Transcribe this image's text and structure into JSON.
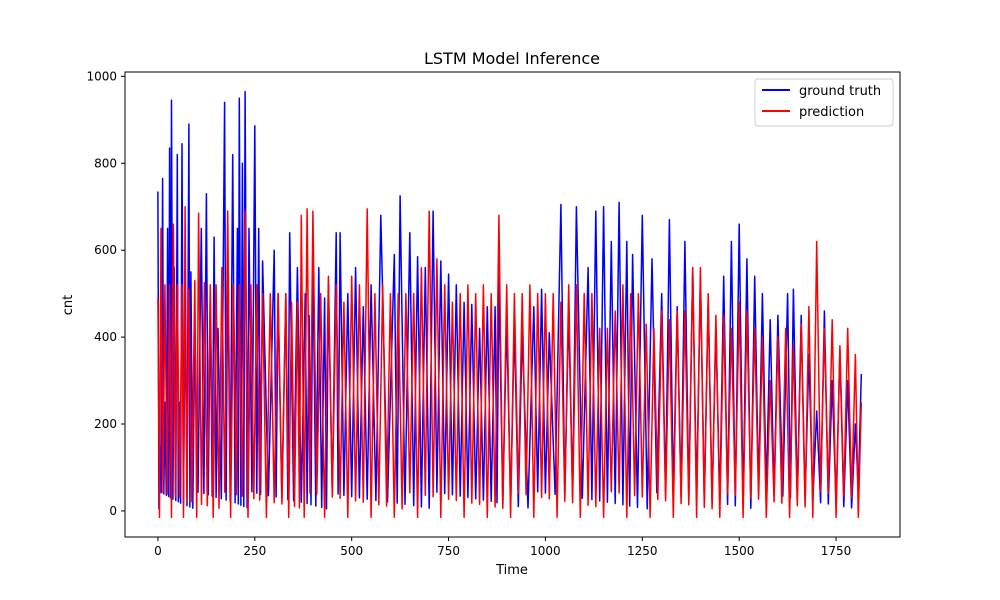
{
  "chart_data": {
    "type": "line",
    "title": "LSTM Model Inference",
    "xlabel": "Time",
    "ylabel": "cnt",
    "xlim": [
      -85,
      1915
    ],
    "ylim": [
      -60,
      1010
    ],
    "xticks": [
      0,
      250,
      500,
      750,
      1000,
      1250,
      1500,
      1750
    ],
    "yticks": [
      0,
      200,
      400,
      600,
      800,
      1000
    ],
    "grid": false,
    "legend_position": "top-right",
    "series": [
      {
        "name": "ground truth",
        "color": "#0000ff",
        "peaks": [
          [
            0,
            735
          ],
          [
            5,
            150
          ],
          [
            12,
            765
          ],
          [
            18,
            250
          ],
          [
            25,
            650
          ],
          [
            30,
            835
          ],
          [
            35,
            945
          ],
          [
            42,
            560
          ],
          [
            50,
            820
          ],
          [
            55,
            250
          ],
          [
            62,
            845
          ],
          [
            70,
            500
          ],
          [
            80,
            890
          ],
          [
            85,
            550
          ],
          [
            95,
            420
          ],
          [
            112,
            650
          ],
          [
            125,
            730
          ],
          [
            135,
            500
          ],
          [
            145,
            630
          ],
          [
            155,
            420
          ],
          [
            172,
            940
          ],
          [
            180,
            600
          ],
          [
            193,
            820
          ],
          [
            205,
            650
          ],
          [
            210,
            950
          ],
          [
            218,
            800
          ],
          [
            225,
            965
          ],
          [
            235,
            650
          ],
          [
            250,
            886
          ],
          [
            260,
            650
          ],
          [
            270,
            575
          ],
          [
            300,
            600
          ],
          [
            310,
            500
          ],
          [
            330,
            500
          ],
          [
            340,
            640
          ],
          [
            360,
            560
          ],
          [
            380,
            500
          ],
          [
            390,
            450
          ],
          [
            400,
            600
          ],
          [
            415,
            560
          ],
          [
            430,
            490
          ],
          [
            440,
            520
          ],
          [
            460,
            640
          ],
          [
            470,
            640
          ],
          [
            490,
            500
          ],
          [
            510,
            560
          ],
          [
            530,
            470
          ],
          [
            550,
            520
          ],
          [
            575,
            680
          ],
          [
            610,
            590
          ],
          [
            625,
            725
          ],
          [
            650,
            640
          ],
          [
            670,
            585
          ],
          [
            690,
            560
          ],
          [
            710,
            690
          ],
          [
            730,
            575
          ],
          [
            750,
            545
          ],
          [
            770,
            520
          ],
          [
            790,
            480
          ],
          [
            810,
            475
          ],
          [
            830,
            420
          ],
          [
            850,
            470
          ],
          [
            870,
            470
          ],
          [
            880,
            540
          ],
          [
            900,
            440
          ],
          [
            920,
            430
          ],
          [
            940,
            410
          ],
          [
            970,
            470
          ],
          [
            990,
            510
          ],
          [
            1010,
            410
          ],
          [
            1040,
            705
          ],
          [
            1060,
            460
          ],
          [
            1080,
            700
          ],
          [
            1110,
            560
          ],
          [
            1130,
            690
          ],
          [
            1150,
            700
          ],
          [
            1170,
            620
          ],
          [
            1190,
            710
          ],
          [
            1210,
            620
          ],
          [
            1225,
            590
          ],
          [
            1250,
            680
          ],
          [
            1275,
            580
          ],
          [
            1300,
            500
          ],
          [
            1320,
            670
          ],
          [
            1340,
            470
          ],
          [
            1360,
            620
          ],
          [
            1380,
            560
          ],
          [
            1400,
            540
          ],
          [
            1420,
            480
          ],
          [
            1440,
            420
          ],
          [
            1460,
            540
          ],
          [
            1480,
            620
          ],
          [
            1500,
            660
          ],
          [
            1520,
            580
          ],
          [
            1540,
            540
          ],
          [
            1560,
            500
          ],
          [
            1580,
            440
          ],
          [
            1600,
            450
          ],
          [
            1625,
            500
          ],
          [
            1640,
            510
          ],
          [
            1660,
            450
          ],
          [
            1680,
            360
          ],
          [
            1700,
            230
          ],
          [
            1720,
            460
          ],
          [
            1740,
            300
          ],
          [
            1760,
            370
          ],
          [
            1780,
            300
          ],
          [
            1800,
            200
          ],
          [
            1815,
            315
          ]
        ]
      },
      {
        "name": "prediction",
        "color": "#ff0000",
        "peaks": [
          [
            0,
            490
          ],
          [
            8,
            650
          ],
          [
            18,
            520
          ],
          [
            30,
            520
          ],
          [
            40,
            660
          ],
          [
            50,
            520
          ],
          [
            62,
            520
          ],
          [
            70,
            700
          ],
          [
            80,
            510
          ],
          [
            95,
            530
          ],
          [
            105,
            685
          ],
          [
            120,
            525
          ],
          [
            135,
            520
          ],
          [
            150,
            520
          ],
          [
            165,
            560
          ],
          [
            180,
            690
          ],
          [
            195,
            520
          ],
          [
            210,
            520
          ],
          [
            225,
            690
          ],
          [
            240,
            520
          ],
          [
            255,
            520
          ],
          [
            270,
            500
          ],
          [
            290,
            500
          ],
          [
            310,
            500
          ],
          [
            330,
            500
          ],
          [
            345,
            480
          ],
          [
            360,
            480
          ],
          [
            370,
            680
          ],
          [
            385,
            695
          ],
          [
            400,
            690
          ],
          [
            420,
            500
          ],
          [
            440,
            540
          ],
          [
            460,
            520
          ],
          [
            480,
            480
          ],
          [
            500,
            540
          ],
          [
            520,
            520
          ],
          [
            540,
            695
          ],
          [
            560,
            500
          ],
          [
            580,
            520
          ],
          [
            600,
            500
          ],
          [
            620,
            500
          ],
          [
            640,
            500
          ],
          [
            660,
            500
          ],
          [
            680,
            560
          ],
          [
            700,
            690
          ],
          [
            720,
            580
          ],
          [
            740,
            520
          ],
          [
            760,
            480
          ],
          [
            780,
            500
          ],
          [
            800,
            520
          ],
          [
            820,
            500
          ],
          [
            840,
            520
          ],
          [
            860,
            500
          ],
          [
            880,
            680
          ],
          [
            900,
            520
          ],
          [
            920,
            500
          ],
          [
            940,
            500
          ],
          [
            960,
            520
          ],
          [
            980,
            500
          ],
          [
            1000,
            500
          ],
          [
            1020,
            500
          ],
          [
            1040,
            480
          ],
          [
            1060,
            520
          ],
          [
            1080,
            520
          ],
          [
            1100,
            500
          ],
          [
            1120,
            500
          ],
          [
            1140,
            420
          ],
          [
            1160,
            420
          ],
          [
            1180,
            460
          ],
          [
            1200,
            520
          ],
          [
            1220,
            500
          ],
          [
            1240,
            500
          ],
          [
            1260,
            430
          ],
          [
            1280,
            420
          ],
          [
            1300,
            460
          ],
          [
            1320,
            440
          ],
          [
            1340,
            460
          ],
          [
            1360,
            460
          ],
          [
            1380,
            560
          ],
          [
            1400,
            560
          ],
          [
            1420,
            500
          ],
          [
            1440,
            450
          ],
          [
            1460,
            450
          ],
          [
            1480,
            420
          ],
          [
            1500,
            480
          ],
          [
            1520,
            460
          ],
          [
            1540,
            420
          ],
          [
            1560,
            400
          ],
          [
            1580,
            300
          ],
          [
            1600,
            400
          ],
          [
            1620,
            420
          ],
          [
            1640,
            380
          ],
          [
            1660,
            430
          ],
          [
            1680,
            470
          ],
          [
            1700,
            620
          ],
          [
            1720,
            420
          ],
          [
            1740,
            440
          ],
          [
            1760,
            380
          ],
          [
            1780,
            420
          ],
          [
            1800,
            360
          ],
          [
            1815,
            250
          ]
        ],
        "min": -15
      }
    ]
  }
}
